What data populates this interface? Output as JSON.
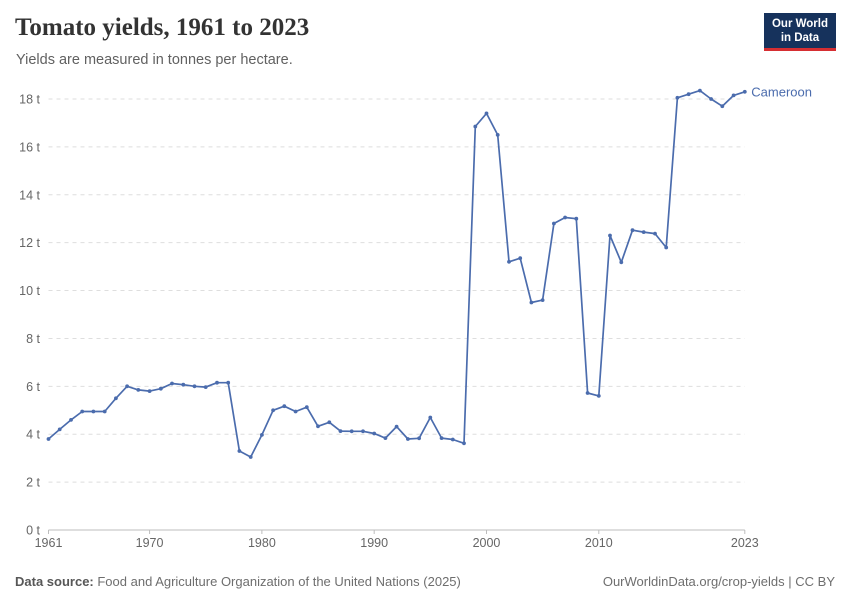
{
  "header": {
    "title": "Tomato yields, 1961 to 2023",
    "subtitle": "Yields are measured in tonnes per hectare."
  },
  "logo": {
    "line1": "Our World",
    "line2": "in Data",
    "bg_color": "#16325c",
    "accent_color": "#d62e32"
  },
  "footer": {
    "source_label": "Data source:",
    "source_text": " Food and Agriculture Organization of the United Nations (2025)",
    "credit": "OurWorldinData.org/crop-yields | CC BY"
  },
  "chart_data": {
    "type": "line",
    "title": "Tomato yields, 1961 to 2023",
    "xlabel": "",
    "ylabel": "tonnes per hectare",
    "xlim": [
      1961,
      2023
    ],
    "ylim": [
      0,
      18
    ],
    "x_ticks": [
      1961,
      1970,
      1980,
      1990,
      2000,
      2010,
      2023
    ],
    "y_ticks": [
      0,
      2,
      4,
      6,
      8,
      10,
      12,
      14,
      16,
      18
    ],
    "y_tick_suffix": " t",
    "grid": "dashed-horizontal",
    "legend": "end-of-line-label",
    "series": [
      {
        "name": "Cameroon",
        "color": "#4b6cad",
        "x": [
          1961,
          1962,
          1963,
          1964,
          1965,
          1966,
          1967,
          1968,
          1969,
          1970,
          1971,
          1972,
          1973,
          1974,
          1975,
          1976,
          1977,
          1978,
          1979,
          1980,
          1981,
          1982,
          1983,
          1984,
          1985,
          1986,
          1987,
          1988,
          1989,
          1990,
          1991,
          1992,
          1993,
          1994,
          1995,
          1996,
          1997,
          1998,
          1999,
          2000,
          2001,
          2002,
          2003,
          2004,
          2005,
          2006,
          2007,
          2008,
          2009,
          2010,
          2011,
          2012,
          2013,
          2014,
          2015,
          2016,
          2017,
          2018,
          2019,
          2020,
          2021,
          2022,
          2023
        ],
        "values": [
          3.8,
          4.2,
          4.6,
          4.95,
          4.95,
          4.95,
          5.5,
          6.0,
          5.85,
          5.8,
          5.9,
          6.12,
          6.07,
          6.0,
          5.97,
          6.15,
          6.15,
          3.3,
          3.05,
          3.97,
          5.0,
          5.17,
          4.95,
          5.13,
          4.33,
          4.5,
          4.13,
          4.12,
          4.12,
          4.03,
          3.84,
          4.32,
          3.8,
          3.83,
          4.7,
          3.84,
          3.78,
          3.62,
          16.85,
          17.4,
          16.5,
          11.2,
          11.35,
          9.5,
          9.6,
          12.8,
          13.05,
          13.0,
          5.72,
          5.6,
          12.3,
          11.18,
          12.52,
          12.44,
          12.38,
          11.8,
          18.05,
          18.2,
          18.35,
          18.0,
          17.7,
          18.15,
          18.3
        ]
      }
    ]
  }
}
